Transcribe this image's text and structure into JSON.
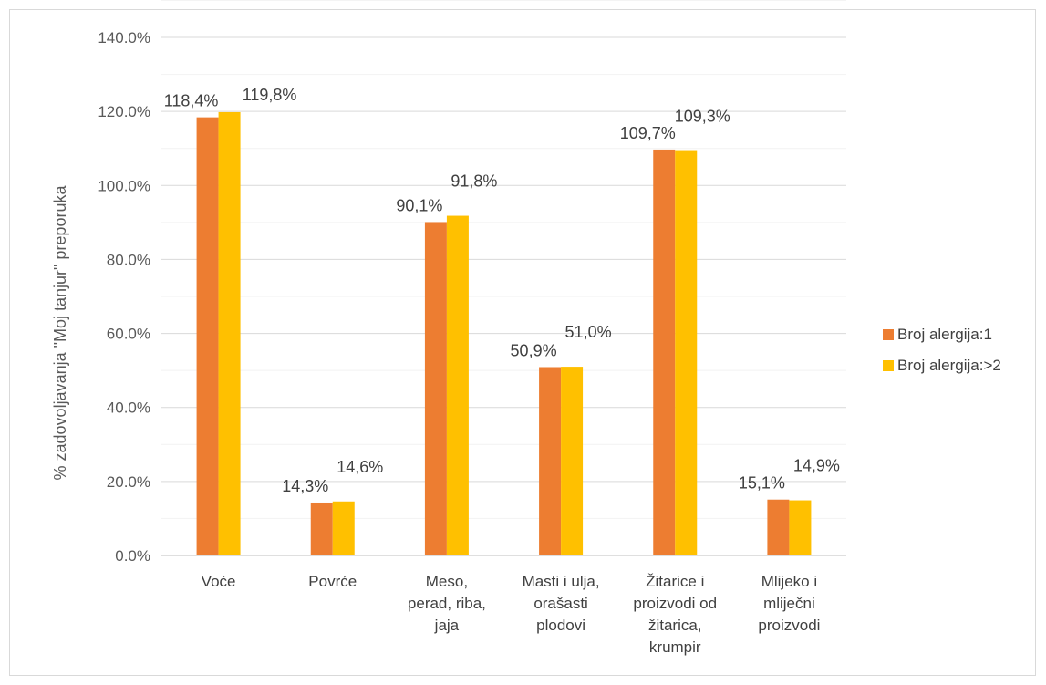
{
  "chart_data": {
    "type": "bar",
    "ylabel": "% zadovoljavanja \"Moj tanjur\" preporuka",
    "ylim": [
      0,
      140
    ],
    "y_ticks": [
      "0.0%",
      "20.0%",
      "40.0%",
      "60.0%",
      "80.0%",
      "100.0%",
      "120.0%",
      "140.0%"
    ],
    "grid": true,
    "legend_position": "right",
    "categories": [
      [
        "Voće"
      ],
      [
        "Povrće"
      ],
      [
        "Meso,",
        "perad, riba,",
        "jaja"
      ],
      [
        "Masti i ulja,",
        "orašasti",
        "plodovi"
      ],
      [
        "Žitarice i",
        "proizvodi od",
        "žitarica,",
        "krumpir"
      ],
      [
        "Mlijeko i",
        "mliječni",
        "proizvodi"
      ]
    ],
    "series": [
      {
        "name": "Broj alergija:1",
        "color": "#ed7d31",
        "values": [
          118.4,
          14.3,
          90.1,
          50.9,
          109.7,
          15.1
        ],
        "labels": [
          "118,4%",
          "14,3%",
          "90,1%",
          "50,9%",
          "109,7%",
          "15,1%"
        ]
      },
      {
        "name": "Broj alergija:>2",
        "color": "#ffc000",
        "values": [
          119.8,
          14.6,
          91.8,
          51.0,
          109.3,
          14.9
        ],
        "labels": [
          "119,8%",
          "14,6%",
          "91,8%",
          "51,0%",
          "109,3%",
          "14,9%"
        ]
      }
    ]
  }
}
